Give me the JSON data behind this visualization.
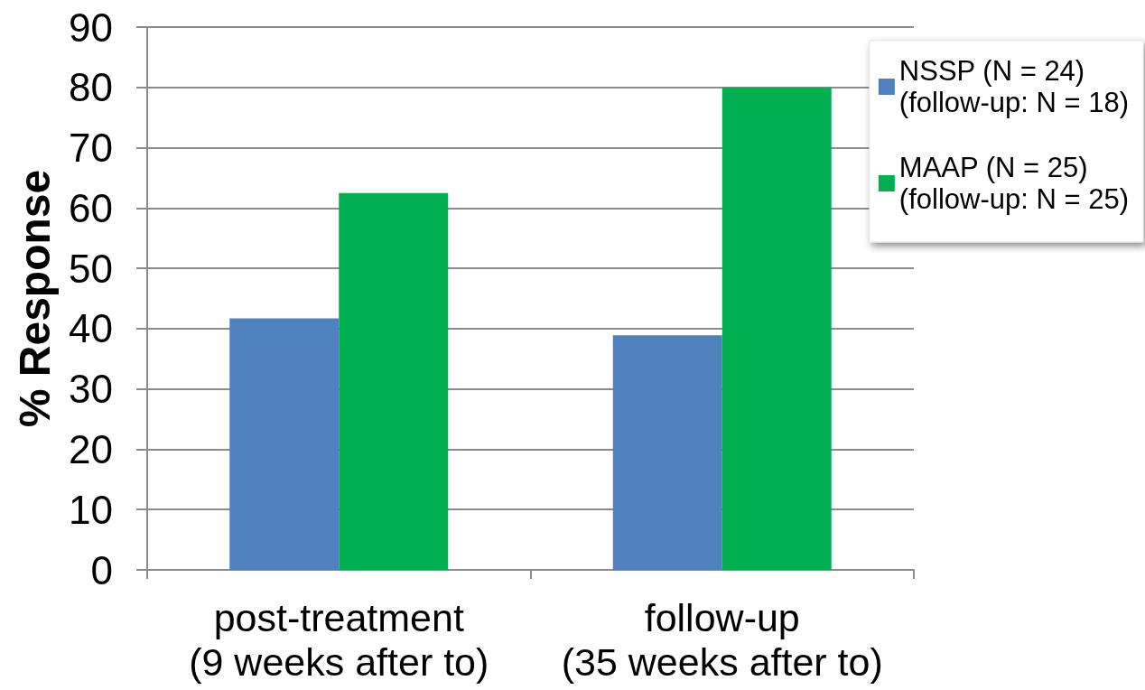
{
  "chart_data": {
    "type": "bar",
    "ylabel": "% Response",
    "categories": [
      "post-treatment\n(9 weeks after to)",
      "follow-up\n(35 weeks after to)"
    ],
    "series": [
      {
        "name": "NSSP (N = 24)\n(follow-up: N = 18)",
        "color": "#4f81bd",
        "values": [
          41.7,
          38.9
        ]
      },
      {
        "name": "MAAP (N = 25)\n(follow-up: N = 25)",
        "color": "#00b050",
        "values": [
          62.5,
          80
        ]
      }
    ],
    "ylim": [
      0,
      90
    ],
    "yticks": [
      0,
      10,
      20,
      30,
      40,
      50,
      60,
      70,
      80,
      90
    ],
    "grid": "y",
    "legend": "top right"
  }
}
